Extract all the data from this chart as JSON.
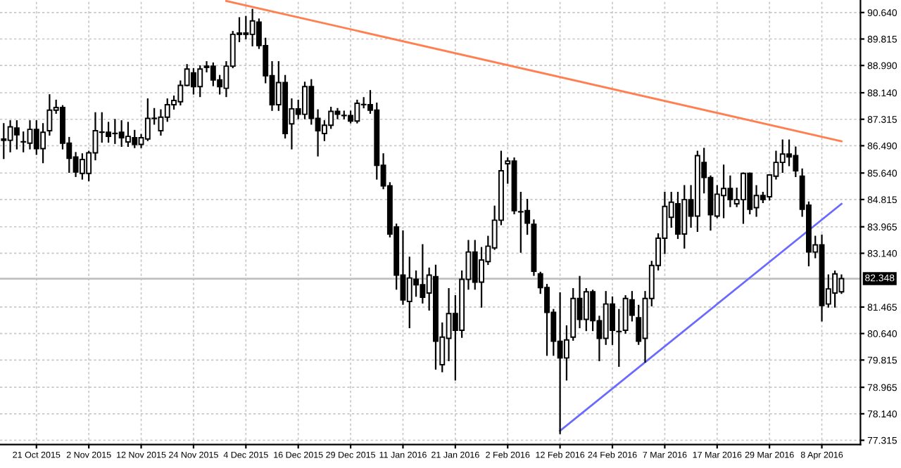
{
  "chart_data": {
    "type": "candlestick",
    "categories": [
      null,
      null,
      null,
      null,
      null,
      "21 Oct 2015",
      null,
      null,
      null,
      null,
      null,
      null,
      null,
      "2 Nov 2015",
      null,
      null,
      null,
      null,
      null,
      null,
      null,
      "12 Nov 2015",
      null,
      null,
      null,
      null,
      null,
      null,
      null,
      "24 Nov 2015",
      null,
      null,
      null,
      null,
      null,
      null,
      null,
      "4 Dec 2015",
      null,
      null,
      null,
      null,
      null,
      null,
      null,
      "16 Dec 2015",
      null,
      null,
      null,
      null,
      null,
      null,
      null,
      "29 Dec 2015",
      null,
      null,
      null,
      null,
      null,
      null,
      null,
      "11 Jan 2016",
      null,
      null,
      null,
      null,
      null,
      null,
      null,
      "21 Jan 2016",
      null,
      null,
      null,
      null,
      null,
      null,
      null,
      "2 Feb 2016",
      null,
      null,
      null,
      null,
      null,
      null,
      null,
      "12 Feb 2016",
      null,
      null,
      null,
      null,
      null,
      null,
      null,
      "24 Feb 2016",
      null,
      null,
      null,
      null,
      null,
      null,
      null,
      "7 Mar 2016",
      null,
      null,
      null,
      null,
      null,
      null,
      null,
      "17 Mar 2016",
      null,
      null,
      null,
      null,
      null,
      null,
      null,
      "29 Mar 2016",
      null,
      null,
      null,
      null,
      null,
      null,
      null,
      "8 Apr 2016",
      null,
      null,
      null
    ],
    "ohlc": [
      [
        86.66,
        87.17,
        86.1,
        86.7
      ],
      [
        86.66,
        87.26,
        86.31,
        87.08
      ],
      [
        87.04,
        87.26,
        86.4,
        86.83
      ],
      [
        86.61,
        86.91,
        86.31,
        86.61
      ],
      [
        86.57,
        87.26,
        86.4,
        87.0
      ],
      [
        87.0,
        87.26,
        86.23,
        86.4
      ],
      [
        86.4,
        87.17,
        85.97,
        86.91
      ],
      [
        86.96,
        88.07,
        86.83,
        87.6
      ],
      [
        87.6,
        87.9,
        87.51,
        87.68
      ],
      [
        87.68,
        87.73,
        86.4,
        86.57
      ],
      [
        86.57,
        86.74,
        85.67,
        86.1
      ],
      [
        86.14,
        86.27,
        85.54,
        85.67
      ],
      [
        85.63,
        86.23,
        85.46,
        86.06
      ],
      [
        85.63,
        86.31,
        85.41,
        86.27
      ],
      [
        86.27,
        87.51,
        86.06,
        86.96
      ],
      [
        86.91,
        87.51,
        86.61,
        86.91
      ],
      [
        86.91,
        87.21,
        86.61,
        86.78
      ],
      [
        86.87,
        87.3,
        86.57,
        86.87
      ],
      [
        86.91,
        87.26,
        86.48,
        86.74
      ],
      [
        86.61,
        87.21,
        86.48,
        86.78
      ],
      [
        86.74,
        86.96,
        86.44,
        86.53
      ],
      [
        86.53,
        86.83,
        86.44,
        86.74
      ],
      [
        86.7,
        87.94,
        86.66,
        87.34
      ],
      [
        87.34,
        87.64,
        87.17,
        87.34
      ],
      [
        86.96,
        87.6,
        86.83,
        87.38
      ],
      [
        87.38,
        87.94,
        87.26,
        87.77
      ],
      [
        87.77,
        88.03,
        87.64,
        87.9
      ],
      [
        87.86,
        88.5,
        87.77,
        88.37
      ],
      [
        88.37,
        89.01,
        88.37,
        88.88
      ],
      [
        88.76,
        88.88,
        88.11,
        88.33
      ],
      [
        88.33,
        88.97,
        88.03,
        88.88
      ],
      [
        88.97,
        89.1,
        88.8,
        88.93
      ],
      [
        88.97,
        89.06,
        88.37,
        88.54
      ],
      [
        88.54,
        88.67,
        88.11,
        88.33
      ],
      [
        88.28,
        89.1,
        88.03,
        88.97
      ],
      [
        88.97,
        90.04,
        88.93,
        89.96
      ],
      [
        89.96,
        90.47,
        89.74,
        90.0
      ],
      [
        90.0,
        90.51,
        89.83,
        89.96
      ],
      [
        89.96,
        90.73,
        89.61,
        90.38
      ],
      [
        90.34,
        90.43,
        89.53,
        89.61
      ],
      [
        89.61,
        89.83,
        88.46,
        88.67
      ],
      [
        88.67,
        89.1,
        87.6,
        87.77
      ],
      [
        87.77,
        89.1,
        87.6,
        88.46
      ],
      [
        88.46,
        88.67,
        86.74,
        86.87
      ],
      [
        87.17,
        87.94,
        86.4,
        87.64
      ],
      [
        87.64,
        87.9,
        87.34,
        87.47
      ],
      [
        87.47,
        88.46,
        87.34,
        88.33
      ],
      [
        88.33,
        88.54,
        87.17,
        87.34
      ],
      [
        87.34,
        87.6,
        86.18,
        86.96
      ],
      [
        86.87,
        87.26,
        86.66,
        87.13
      ],
      [
        87.13,
        87.68,
        87.04,
        87.56
      ],
      [
        87.56,
        87.64,
        87.34,
        87.47
      ],
      [
        87.43,
        87.56,
        87.34,
        87.43
      ],
      [
        87.43,
        87.56,
        87.21,
        87.26
      ],
      [
        87.26,
        87.9,
        87.21,
        87.81
      ],
      [
        87.77,
        87.98,
        87.68,
        87.77
      ],
      [
        87.77,
        88.2,
        87.51,
        87.6
      ],
      [
        87.6,
        87.81,
        85.46,
        85.88
      ],
      [
        85.88,
        86.23,
        85.16,
        85.24
      ],
      [
        85.24,
        85.33,
        83.66,
        83.74
      ],
      [
        83.96,
        84.04,
        82.03,
        82.46
      ],
      [
        82.46,
        83.83,
        81.56,
        81.69
      ],
      [
        81.64,
        83.01,
        80.83,
        82.37
      ],
      [
        82.33,
        82.58,
        81.81,
        82.16
      ],
      [
        82.16,
        83.4,
        81.6,
        81.77
      ],
      [
        81.9,
        82.67,
        81.38,
        82.46
      ],
      [
        82.41,
        82.76,
        79.54,
        80.4
      ],
      [
        79.67,
        80.96,
        79.46,
        80.53
      ],
      [
        80.49,
        82.03,
        79.8,
        81.26
      ],
      [
        81.26,
        81.81,
        79.2,
        80.74
      ],
      [
        80.74,
        82.58,
        80.53,
        82.33
      ],
      [
        82.33,
        83.53,
        82.03,
        83.18
      ],
      [
        83.18,
        83.53,
        82.03,
        82.24
      ],
      [
        82.24,
        83.31,
        81.47,
        82.93
      ],
      [
        82.88,
        83.66,
        82.8,
        83.36
      ],
      [
        83.31,
        84.6,
        83.27,
        84.17
      ],
      [
        84.17,
        86.31,
        84.04,
        85.71
      ],
      [
        85.93,
        86.1,
        85.33,
        86.01
      ],
      [
        86.01,
        86.1,
        84.38,
        84.47
      ],
      [
        84.43,
        85.03,
        83.18,
        84.43
      ],
      [
        84.47,
        84.81,
        83.74,
        84.08
      ],
      [
        84.04,
        84.17,
        82.46,
        82.58
      ],
      [
        82.5,
        82.54,
        81.9,
        82.07
      ],
      [
        82.07,
        82.16,
        79.97,
        81.3
      ],
      [
        81.3,
        81.38,
        79.97,
        80.4
      ],
      [
        80.4,
        81.9,
        77.53,
        79.88
      ],
      [
        79.88,
        80.87,
        79.2,
        80.44
      ],
      [
        80.53,
        82.03,
        80.44,
        81.73
      ],
      [
        81.73,
        82.41,
        80.83,
        81.08
      ],
      [
        81.08,
        82.03,
        80.74,
        81.94
      ],
      [
        81.94,
        81.98,
        80.74,
        81.04
      ],
      [
        81.04,
        81.17,
        79.8,
        80.49
      ],
      [
        80.49,
        81.94,
        80.31,
        81.56
      ],
      [
        81.56,
        81.77,
        80.31,
        80.74
      ],
      [
        80.7,
        81.38,
        79.63,
        80.7
      ],
      [
        80.74,
        81.81,
        80.66,
        81.73
      ],
      [
        81.69,
        81.94,
        81.04,
        81.21
      ],
      [
        81.13,
        81.51,
        80.31,
        80.4
      ],
      [
        80.49,
        81.94,
        79.76,
        81.73
      ],
      [
        81.73,
        82.88,
        81.51,
        82.76
      ],
      [
        82.76,
        83.74,
        82.63,
        83.61
      ],
      [
        83.61,
        85.03,
        83.14,
        84.6
      ],
      [
        84.26,
        85.03,
        83.96,
        84.73
      ],
      [
        84.68,
        85.03,
        83.61,
        83.74
      ],
      [
        83.74,
        85.24,
        83.31,
        84.81
      ],
      [
        84.81,
        85.24,
        83.96,
        84.3
      ],
      [
        84.3,
        86.31,
        83.83,
        86.18
      ],
      [
        85.97,
        86.4,
        85.03,
        85.5
      ],
      [
        85.5,
        85.54,
        83.87,
        84.34
      ],
      [
        84.3,
        85.24,
        84.26,
        84.98
      ],
      [
        84.94,
        85.88,
        84.26,
        85.16
      ],
      [
        85.16,
        85.54,
        84.6,
        84.81
      ],
      [
        84.68,
        85.16,
        84.6,
        84.81
      ],
      [
        84.81,
        85.63,
        84.08,
        85.63
      ],
      [
        85.63,
        85.63,
        84.38,
        84.51
      ],
      [
        84.56,
        85.24,
        84.3,
        84.94
      ],
      [
        84.94,
        85.03,
        84.73,
        84.81
      ],
      [
        84.9,
        85.58,
        84.81,
        85.58
      ],
      [
        85.54,
        86.31,
        85.46,
        85.97
      ],
      [
        85.97,
        86.66,
        85.67,
        86.23
      ],
      [
        86.23,
        86.66,
        85.88,
        86.14
      ],
      [
        86.18,
        86.44,
        85.54,
        85.71
      ],
      [
        85.54,
        85.76,
        84.3,
        84.51
      ],
      [
        84.64,
        84.73,
        82.76,
        83.18
      ],
      [
        83.18,
        83.66,
        83.01,
        83.4
      ],
      [
        83.4,
        83.7,
        81.04,
        81.51
      ],
      [
        81.56,
        82.46,
        81.47,
        82.03
      ],
      [
        81.9,
        82.58,
        81.47,
        82.5
      ],
      [
        81.94,
        82.46,
        81.9,
        82.35
      ]
    ],
    "series": [
      {
        "type": "line",
        "color": "#ff7f50",
        "values": [
          null,
          null,
          null,
          null,
          null,
          null,
          null,
          null,
          null,
          null,
          null,
          null,
          null,
          null,
          null,
          null,
          null,
          null,
          null,
          null,
          null,
          null,
          null,
          null,
          null,
          null,
          null,
          null,
          null,
          null,
          null,
          null,
          null,
          null,
          91.0,
          null,
          null,
          null,
          null,
          null,
          null,
          null,
          null,
          null,
          null,
          null,
          null,
          null,
          null,
          null,
          null,
          null,
          null,
          null,
          null,
          null,
          null,
          null,
          null,
          null,
          null,
          null,
          null,
          null,
          null,
          null,
          null,
          null,
          null,
          null,
          null,
          null,
          null,
          null,
          null,
          null,
          null,
          null,
          null,
          null,
          null,
          null,
          null,
          null,
          null,
          null,
          null,
          null,
          null,
          null,
          null,
          null,
          null,
          null,
          null,
          null,
          null,
          null,
          null,
          null,
          null,
          null,
          null,
          null,
          null,
          null,
          null,
          null,
          null,
          null,
          null,
          null,
          null,
          null,
          null,
          null,
          null,
          null,
          null,
          null,
          null,
          null,
          null,
          null,
          null,
          null,
          null,
          null,
          86.63
        ]
      },
      {
        "type": "line",
        "color": "#6a6aff",
        "values": [
          null,
          null,
          null,
          null,
          null,
          null,
          null,
          null,
          null,
          null,
          null,
          null,
          null,
          null,
          null,
          null,
          null,
          null,
          null,
          null,
          null,
          null,
          null,
          null,
          null,
          null,
          null,
          null,
          null,
          null,
          null,
          null,
          null,
          null,
          null,
          null,
          null,
          null,
          null,
          null,
          null,
          null,
          null,
          null,
          null,
          null,
          null,
          null,
          null,
          null,
          null,
          null,
          null,
          null,
          null,
          null,
          null,
          null,
          null,
          null,
          null,
          null,
          null,
          null,
          null,
          null,
          null,
          null,
          null,
          null,
          null,
          null,
          null,
          null,
          null,
          null,
          null,
          null,
          null,
          null,
          null,
          null,
          null,
          null,
          null,
          77.61,
          null,
          null,
          null,
          null,
          null,
          null,
          null,
          null,
          null,
          null,
          null,
          null,
          null,
          null,
          null,
          null,
          null,
          null,
          null,
          null,
          null,
          null,
          null,
          null,
          null,
          null,
          null,
          null,
          null,
          null,
          null,
          null,
          null,
          null,
          null,
          null,
          null,
          null,
          null,
          null,
          null,
          null,
          84.68
        ]
      }
    ],
    "ylim": [
      77.18,
      91.03
    ],
    "yticks": [
      {
        "value": 90.64,
        "label": "90.640"
      },
      {
        "value": 89.815,
        "label": "89.815"
      },
      {
        "value": 88.99,
        "label": "88.990"
      },
      {
        "value": 88.14,
        "label": "88.140"
      },
      {
        "value": 87.315,
        "label": "87.315"
      },
      {
        "value": 86.49,
        "label": "86.490"
      },
      {
        "value": 85.64,
        "label": "85.640"
      },
      {
        "value": 84.815,
        "label": "84.815"
      },
      {
        "value": 83.965,
        "label": "83.965"
      },
      {
        "value": 83.14,
        "label": "83.140"
      },
      {
        "value": 81.465,
        "label": "81.465"
      },
      {
        "value": 80.64,
        "label": "80.640"
      },
      {
        "value": 79.815,
        "label": "79.815"
      },
      {
        "value": 78.965,
        "label": "78.965"
      },
      {
        "value": 78.14,
        "label": "78.140"
      },
      {
        "value": 77.315,
        "label": "77.315"
      }
    ],
    "ref_lines": [
      {
        "axis": "y",
        "value": 82.348,
        "label": "82.348",
        "color": "#c0c0c0"
      }
    ],
    "grid": true
  }
}
